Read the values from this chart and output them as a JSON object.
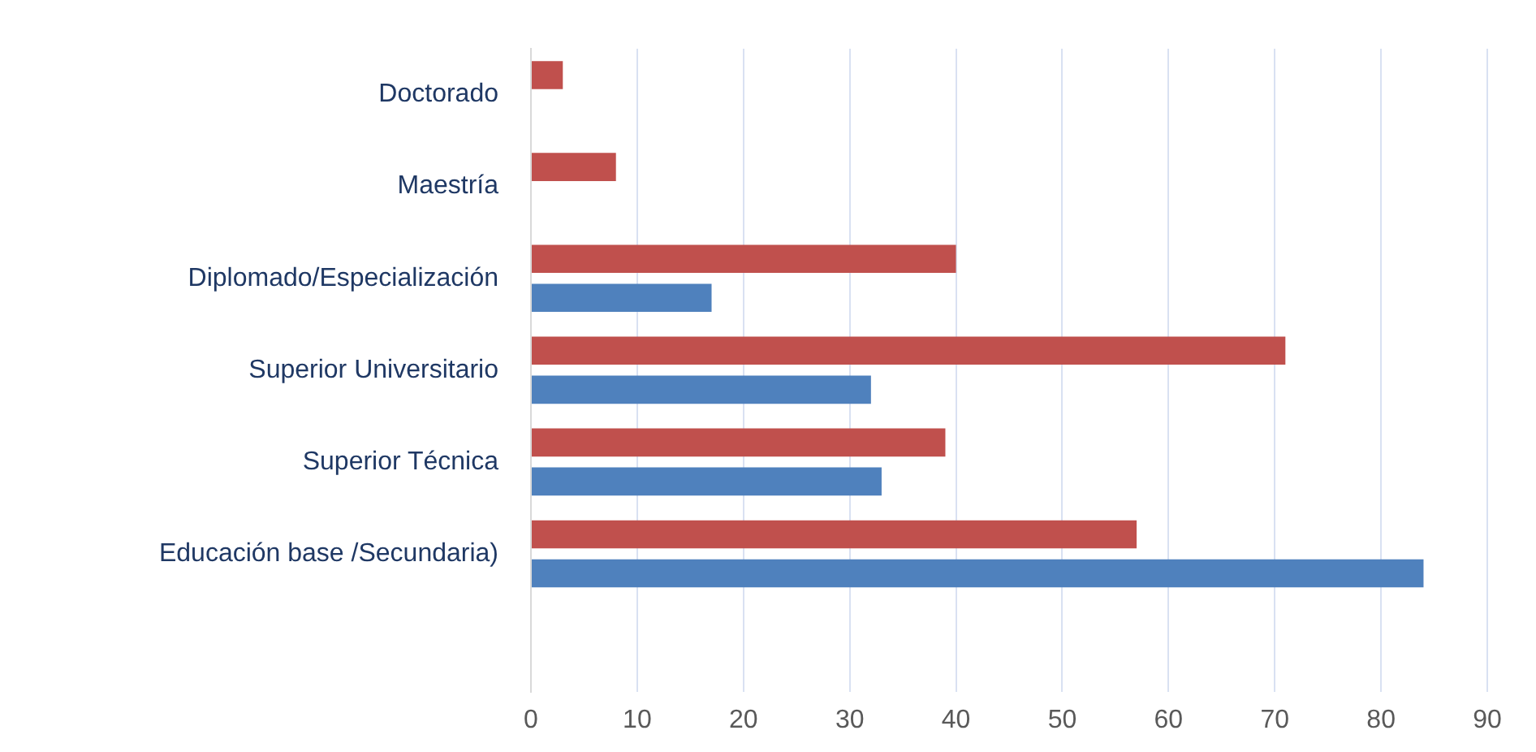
{
  "chart_data": {
    "type": "bar",
    "orientation": "horizontal",
    "categories": [
      "Doctorado",
      "Maestría",
      "Diplomado/Especialización",
      "Superior Universitario",
      "Superior Técnica",
      "Educación base /Secundaria)",
      null
    ],
    "series": [
      {
        "color": "#c0504d",
        "values": [
          3,
          8,
          40,
          71,
          39,
          57,
          null
        ]
      },
      {
        "color": "#4f81bd",
        "values": [
          null,
          null,
          17,
          32,
          33,
          84,
          null
        ]
      }
    ],
    "xlim": [
      0,
      90
    ],
    "xticks": [
      0,
      10,
      20,
      30,
      40,
      50,
      60,
      70,
      80,
      90
    ],
    "grid": "x",
    "legend": false
  }
}
